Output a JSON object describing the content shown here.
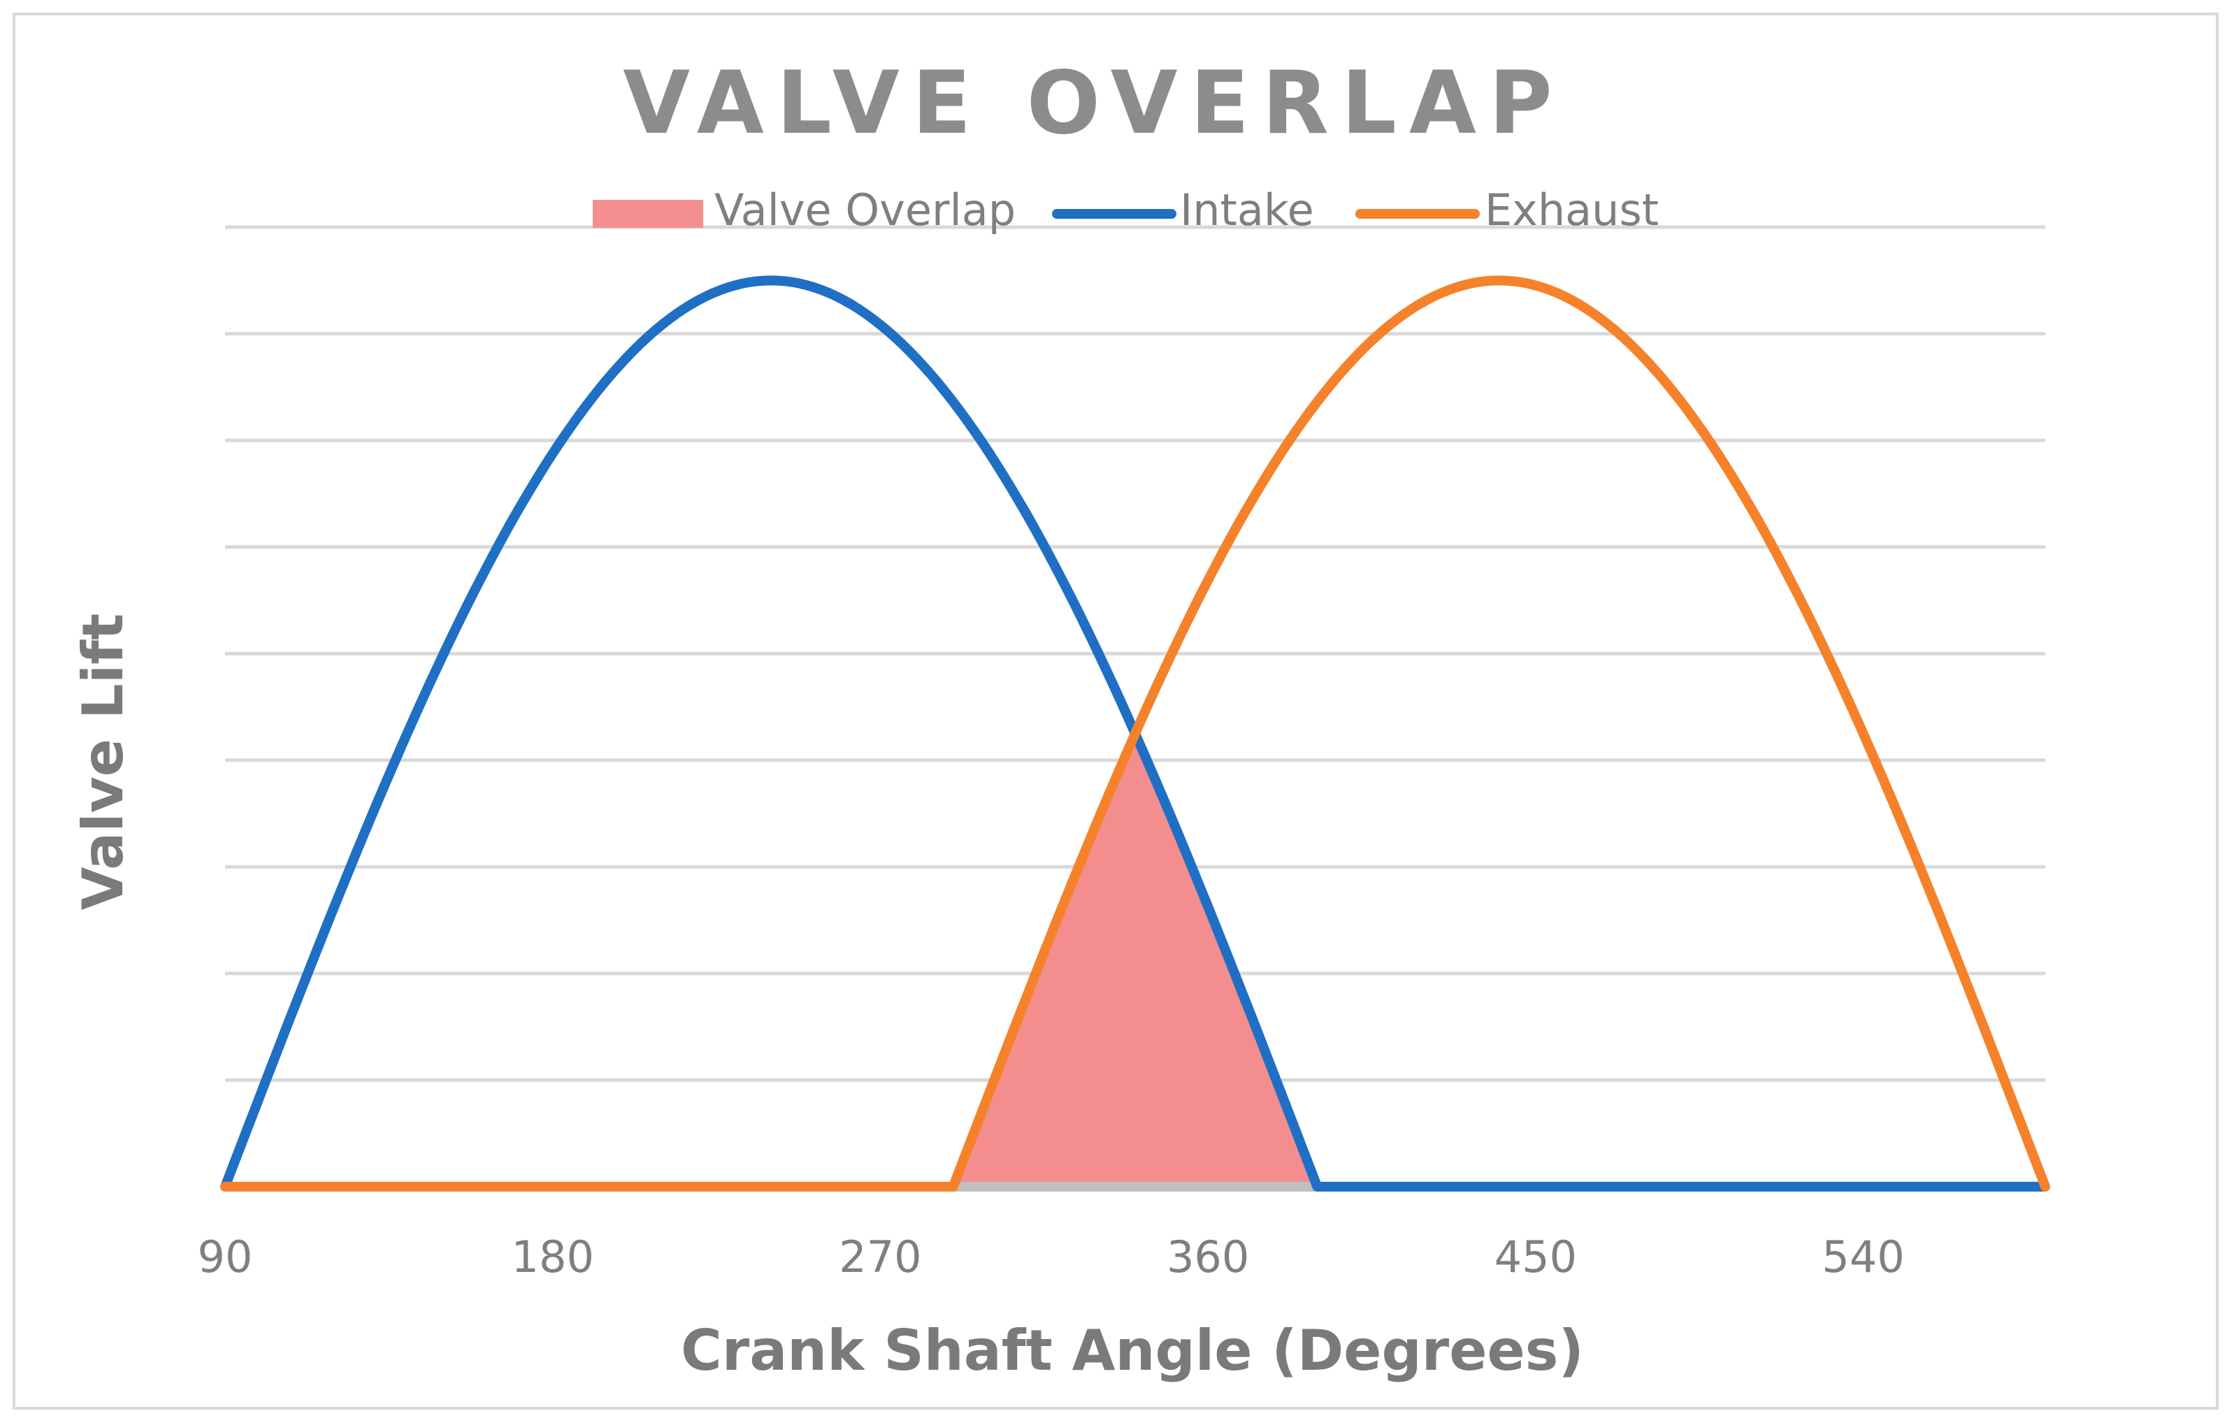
{
  "chart_data": {
    "type": "line",
    "title": "VALVE OVERLAP",
    "xlabel": "Crank Shaft Angle (Degrees)",
    "ylabel": "Valve Lift",
    "xlim": [
      90,
      590
    ],
    "ylim": [
      0,
      9
    ],
    "xticks": [
      90,
      180,
      270,
      360,
      450,
      540
    ],
    "yticks_gridlines": [
      0,
      1,
      2,
      3,
      4,
      5,
      6,
      7,
      8,
      9
    ],
    "legend": {
      "placement": "top-center",
      "entries": [
        "Valve Overlap",
        "Intake",
        "Exhaust"
      ]
    },
    "series": [
      {
        "name": "Intake",
        "color": "#1f6fc5",
        "kind": "line",
        "shape": "sine-arch",
        "start": 90,
        "end": 390,
        "peak_x": 240,
        "peak_y": 8.5,
        "baseline_after": [
          390,
          590
        ]
      },
      {
        "name": "Exhaust",
        "color": "#f5822a",
        "kind": "line",
        "shape": "sine-arch",
        "start": 290,
        "end": 590,
        "peak_x": 440,
        "peak_y": 8.5,
        "baseline_before": [
          90,
          290
        ]
      },
      {
        "name": "Valve Overlap",
        "color": "#f48e8e",
        "kind": "area",
        "range": [
          290,
          390
        ],
        "peak_x": 340,
        "peak_y": 4.6
      }
    ]
  }
}
